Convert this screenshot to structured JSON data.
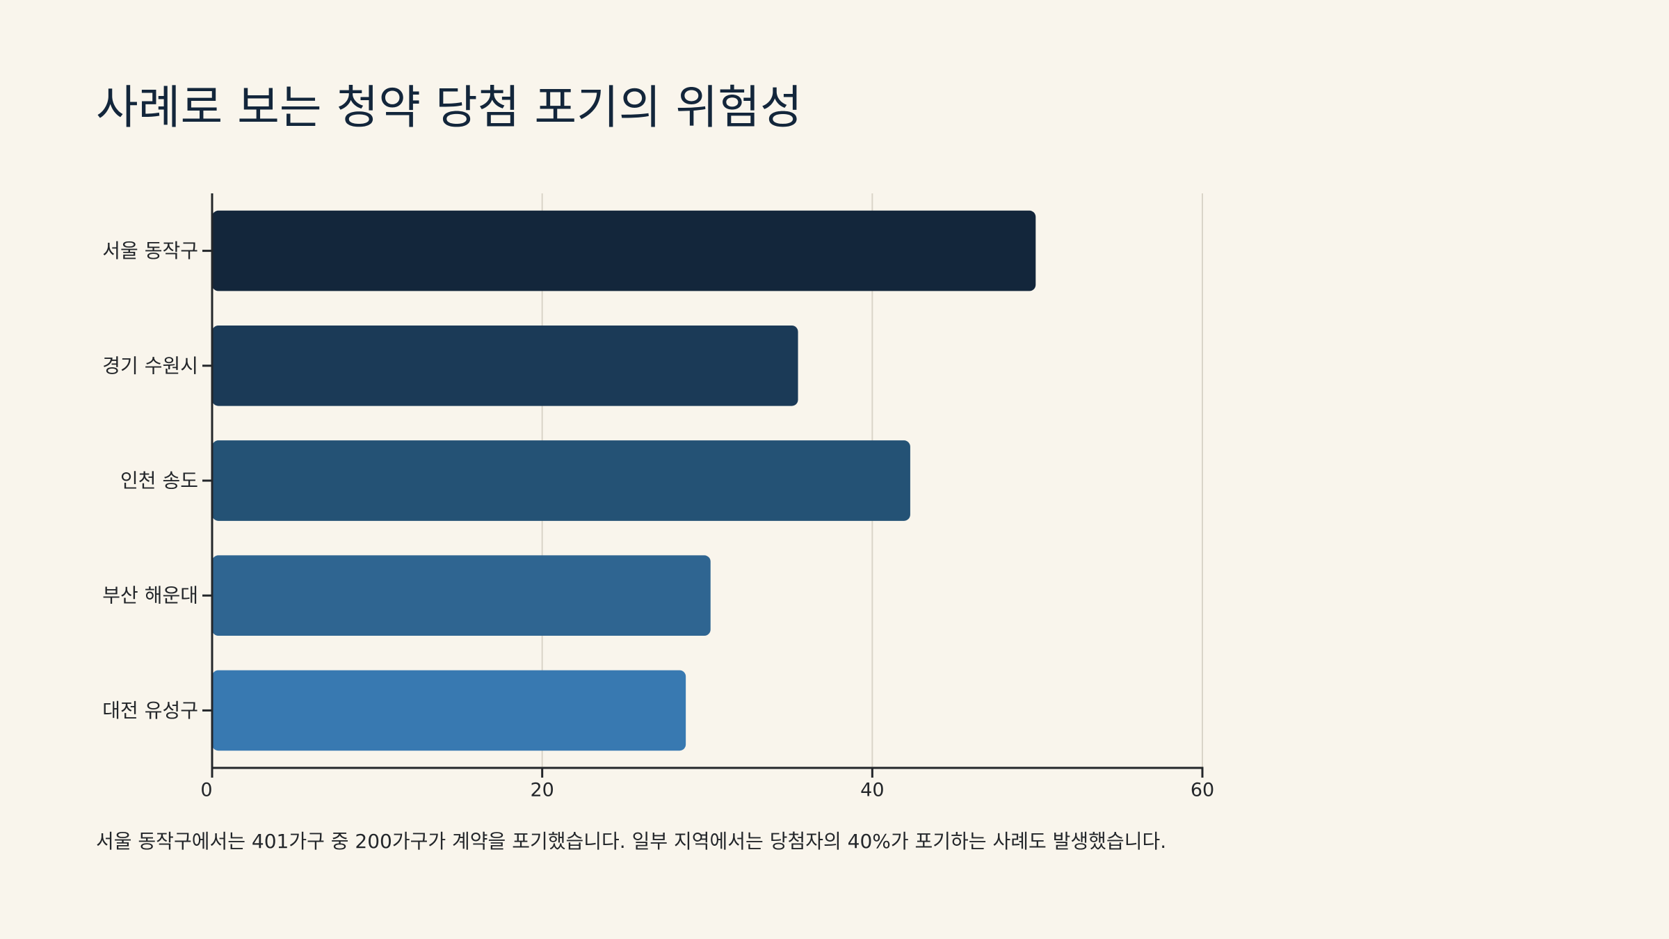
{
  "title": "사례로 보는 청약 당첨 포기의 위험성",
  "footnote": "서울 동작구에서는 401가구 중 200가구가 계약을 포기했습니다. 일부 지역에서는 당첨자의 40%가 포기하는 사례도 발생했습니다.",
  "chart_data": {
    "type": "bar",
    "orientation": "horizontal",
    "title": "사례로 보는 청약 당첨 포기의 위험성",
    "xlabel": "",
    "ylabel": "",
    "categories": [
      "서울 동작구",
      "경기 수원시",
      "인천 송도",
      "부산 해운대",
      "대전 유성구"
    ],
    "values": [
      49.9,
      35.5,
      42.3,
      30.2,
      28.7
    ],
    "colors": [
      "#13263b",
      "#1b3a57",
      "#245275",
      "#2f6591",
      "#3879b1"
    ],
    "xlim": [
      0,
      60
    ],
    "xticks": [
      0,
      20,
      40,
      60
    ],
    "grid": true,
    "legend": "none"
  }
}
